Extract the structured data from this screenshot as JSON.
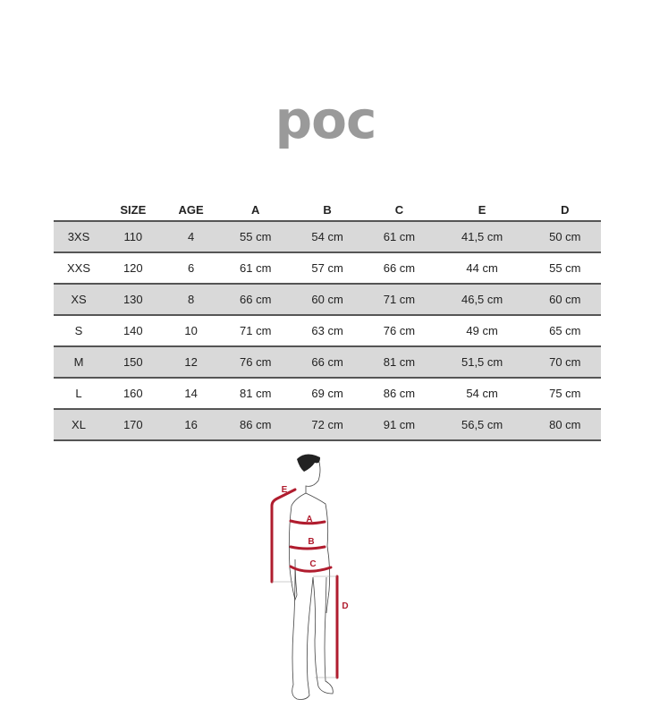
{
  "logo": "poc",
  "table": {
    "headers": [
      "",
      "SIZE",
      "AGE",
      "A",
      "B",
      "C",
      "E",
      "D"
    ],
    "rows": [
      [
        "3XS",
        "110",
        "4",
        "55 cm",
        "54 cm",
        "61 cm",
        "41,5 cm",
        "50 cm"
      ],
      [
        "XXS",
        "120",
        "6",
        "61 cm",
        "57 cm",
        "66 cm",
        "44 cm",
        "55 cm"
      ],
      [
        "XS",
        "130",
        "8",
        "66 cm",
        "60 cm",
        "71 cm",
        "46,5 cm",
        "60 cm"
      ],
      [
        "S",
        "140",
        "10",
        "71 cm",
        "63 cm",
        "76 cm",
        "49 cm",
        "65 cm"
      ],
      [
        "M",
        "150",
        "12",
        "76 cm",
        "66 cm",
        "81 cm",
        "51,5 cm",
        "70 cm"
      ],
      [
        "L",
        "160",
        "14",
        "81 cm",
        "69 cm",
        "86 cm",
        "54 cm",
        "75 cm"
      ],
      [
        "XL",
        "170",
        "16",
        "86 cm",
        "72 cm",
        "91 cm",
        "56,5 cm",
        "80 cm"
      ]
    ]
  },
  "figure": {
    "labels": {
      "a": "A",
      "b": "B",
      "c": "C",
      "d": "D",
      "e": "E"
    },
    "accent_color": "#b01c2e"
  }
}
